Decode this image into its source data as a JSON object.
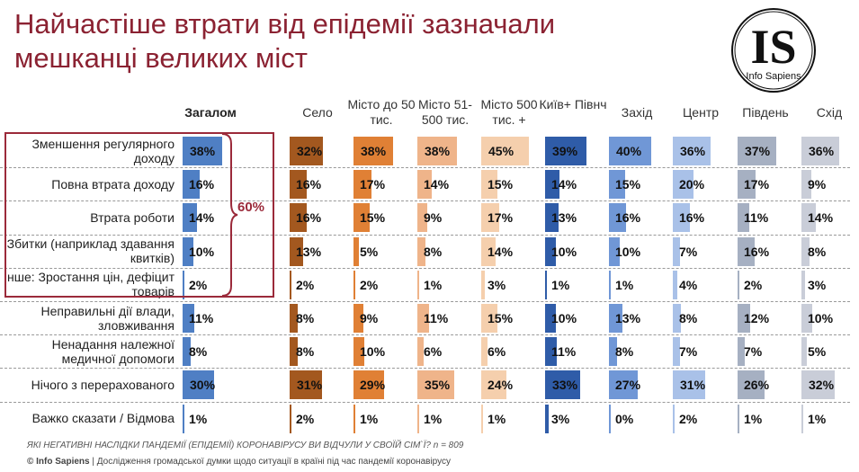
{
  "title_lines": [
    "Найчастіше втрати від епідемії зазначали",
    "мешканці великих міст"
  ],
  "logo": {
    "initials": "IS",
    "name": "Info Sapiens"
  },
  "bracket_label": "60%",
  "question": "ЯКІ НЕГАТИВНІ НАСЛІДКИ ПАНДЕМІЇ (ЕПІДЕМІЇ) КОРОНАВІРУСУ ВИ ВІДЧУЛИ У СВОЇЙ СІМ`Ї?  n = 809",
  "footer": {
    "brand": "© Info Sapiens",
    "text": " | Дослідження громадської думки щодо ситуації в країні під час пандемії коронавірусу"
  },
  "chart_data": {
    "type": "table",
    "unit": "%",
    "columns": [
      {
        "name": "Загалом",
        "color": "#4f7fc4"
      },
      {
        "name": "Село",
        "color": "#a3581f"
      },
      {
        "name": "Місто до 50 тис.",
        "color": "#e08035"
      },
      {
        "name": "Місто 51-500 тис.",
        "color": "#efb48a"
      },
      {
        "name": "Місто  500 тис. +",
        "color": "#f5cfad"
      },
      {
        "name": "Київ+ Півнч",
        "color": "#2f5ca8"
      },
      {
        "name": "Захід",
        "color": "#7097d6"
      },
      {
        "name": "Центр",
        "color": "#a9c1e8"
      },
      {
        "name": "Південь",
        "color": "#a6b0c2"
      },
      {
        "name": "Схід",
        "color": "#c9cdd8"
      }
    ],
    "rows": [
      {
        "label": "Зменшення регулярного доходу",
        "values": [
          38,
          32,
          38,
          38,
          45,
          39,
          40,
          36,
          37,
          36
        ]
      },
      {
        "label": "Повна втрата доходу",
        "values": [
          16,
          16,
          17,
          14,
          15,
          14,
          15,
          20,
          17,
          9
        ]
      },
      {
        "label": "Втрата роботи",
        "values": [
          14,
          16,
          15,
          9,
          17,
          13,
          16,
          16,
          11,
          14
        ]
      },
      {
        "label": "Збитки (наприклад здавання квитків)",
        "values": [
          10,
          13,
          5,
          8,
          14,
          10,
          10,
          7,
          16,
          8
        ]
      },
      {
        "label": "Інше: Зростання цін, дефіцит товарів",
        "values": [
          2,
          2,
          2,
          1,
          3,
          1,
          1,
          4,
          2,
          3
        ]
      },
      {
        "label": "Неправильні дії влади, зловживання",
        "values": [
          11,
          8,
          9,
          11,
          15,
          10,
          13,
          8,
          12,
          10
        ]
      },
      {
        "label": "Ненадання належної медичної допомоги",
        "values": [
          8,
          8,
          10,
          6,
          6,
          11,
          8,
          7,
          7,
          5
        ]
      },
      {
        "label": "Нічого з перерахованого",
        "values": [
          30,
          31,
          29,
          35,
          24,
          33,
          27,
          31,
          26,
          32
        ]
      },
      {
        "label": "Важко сказати / Відмова",
        "values": [
          1,
          2,
          1,
          1,
          1,
          3,
          0,
          2,
          1,
          1
        ]
      }
    ]
  }
}
